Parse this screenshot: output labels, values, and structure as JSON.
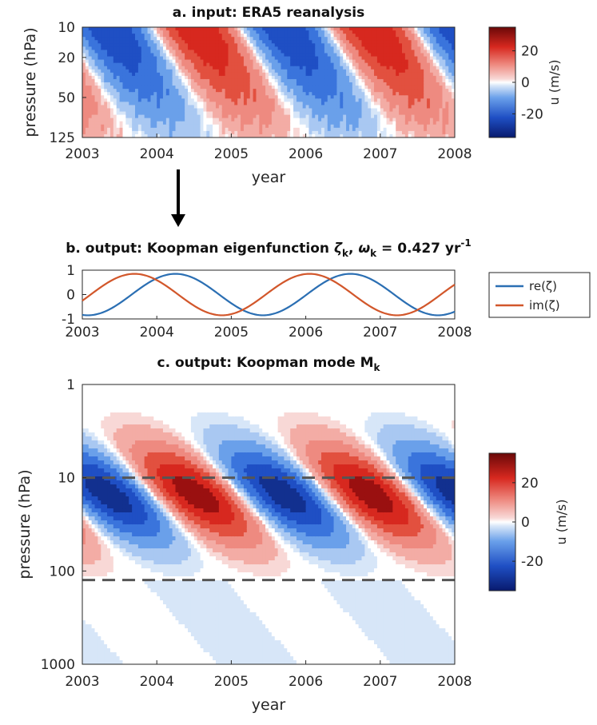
{
  "colors": {
    "neg_dark": "#0a1a78",
    "neg_mid": "#2a5fd6",
    "neg_light": "#c8dcf6",
    "white": "#ffffff",
    "pos_light": "#f6cfcd",
    "pos_mid": "#e03a2c",
    "pos_dark": "#7a0c0c",
    "re_line": "#2b6fb3",
    "im_line": "#d2572b",
    "dash": "#555555"
  },
  "chart_data": [
    {
      "panel": "a",
      "type": "heatmap",
      "title": "a. input: ERA5 reanalysis",
      "xlabel": "year",
      "ylabel": "pressure (hPa)",
      "xlim": [
        2003,
        2008
      ],
      "xticks": [
        2003,
        2004,
        2005,
        2006,
        2007,
        2008
      ],
      "yticks": [
        10,
        20,
        50,
        125
      ],
      "ylim": [
        10,
        125
      ],
      "yscale": "log",
      "colorbar": {
        "label": "u (m/s)",
        "ticks": [
          20,
          0,
          -20
        ],
        "range": [
          -35,
          35
        ]
      },
      "field": {
        "amplitude": 28,
        "period_years": 2.35,
        "phase_year": 2003.35,
        "descent_years_per_decade": 0.55,
        "noise": "small-scale"
      }
    },
    {
      "panel": "b",
      "type": "line",
      "title_main": "b. output: Koopman eigenfunction ",
      "title_zeta": "ζ",
      "title_sub_k1": "k",
      "title_comma": ", ",
      "title_omega": "ω",
      "title_sub_k2": "k",
      "title_value": " = 0.427 yr",
      "title_sup": "-1",
      "xlim": [
        2003,
        2008
      ],
      "ylim": [
        -1,
        1
      ],
      "xticks": [
        2003,
        2004,
        2005,
        2006,
        2007,
        2008
      ],
      "yticks": [
        1,
        0,
        -1
      ],
      "series": [
        {
          "name": "re(ζ)",
          "amplitude": 0.85,
          "period_years": 2.35,
          "peak_year": 2004.25
        },
        {
          "name": "im(ζ)",
          "amplitude": 0.85,
          "period_years": 2.35,
          "peak_year": 2003.7
        }
      ],
      "legend": {
        "entries": [
          "re(ζ)",
          "im(ζ)"
        ]
      }
    },
    {
      "panel": "c",
      "type": "heatmap",
      "title_main": "c. output: Koopman mode M",
      "title_sub": "k",
      "xlabel": "year",
      "ylabel": "pressure (hPa)",
      "xlim": [
        2003,
        2008
      ],
      "xticks": [
        2003,
        2004,
        2005,
        2006,
        2007,
        2008
      ],
      "yticks": [
        1,
        10,
        100,
        1000
      ],
      "ylim": [
        1,
        1000
      ],
      "yscale": "log",
      "dashed_levels_hPa": [
        10,
        125
      ],
      "colorbar": {
        "label": "u (m/s)",
        "ticks": [
          20,
          0,
          -20
        ],
        "range": [
          -35,
          35
        ]
      },
      "field": {
        "amplitude": 32,
        "period_years": 2.35,
        "phase_year": 2003.35,
        "peak_level_hPa": 15
      }
    }
  ]
}
